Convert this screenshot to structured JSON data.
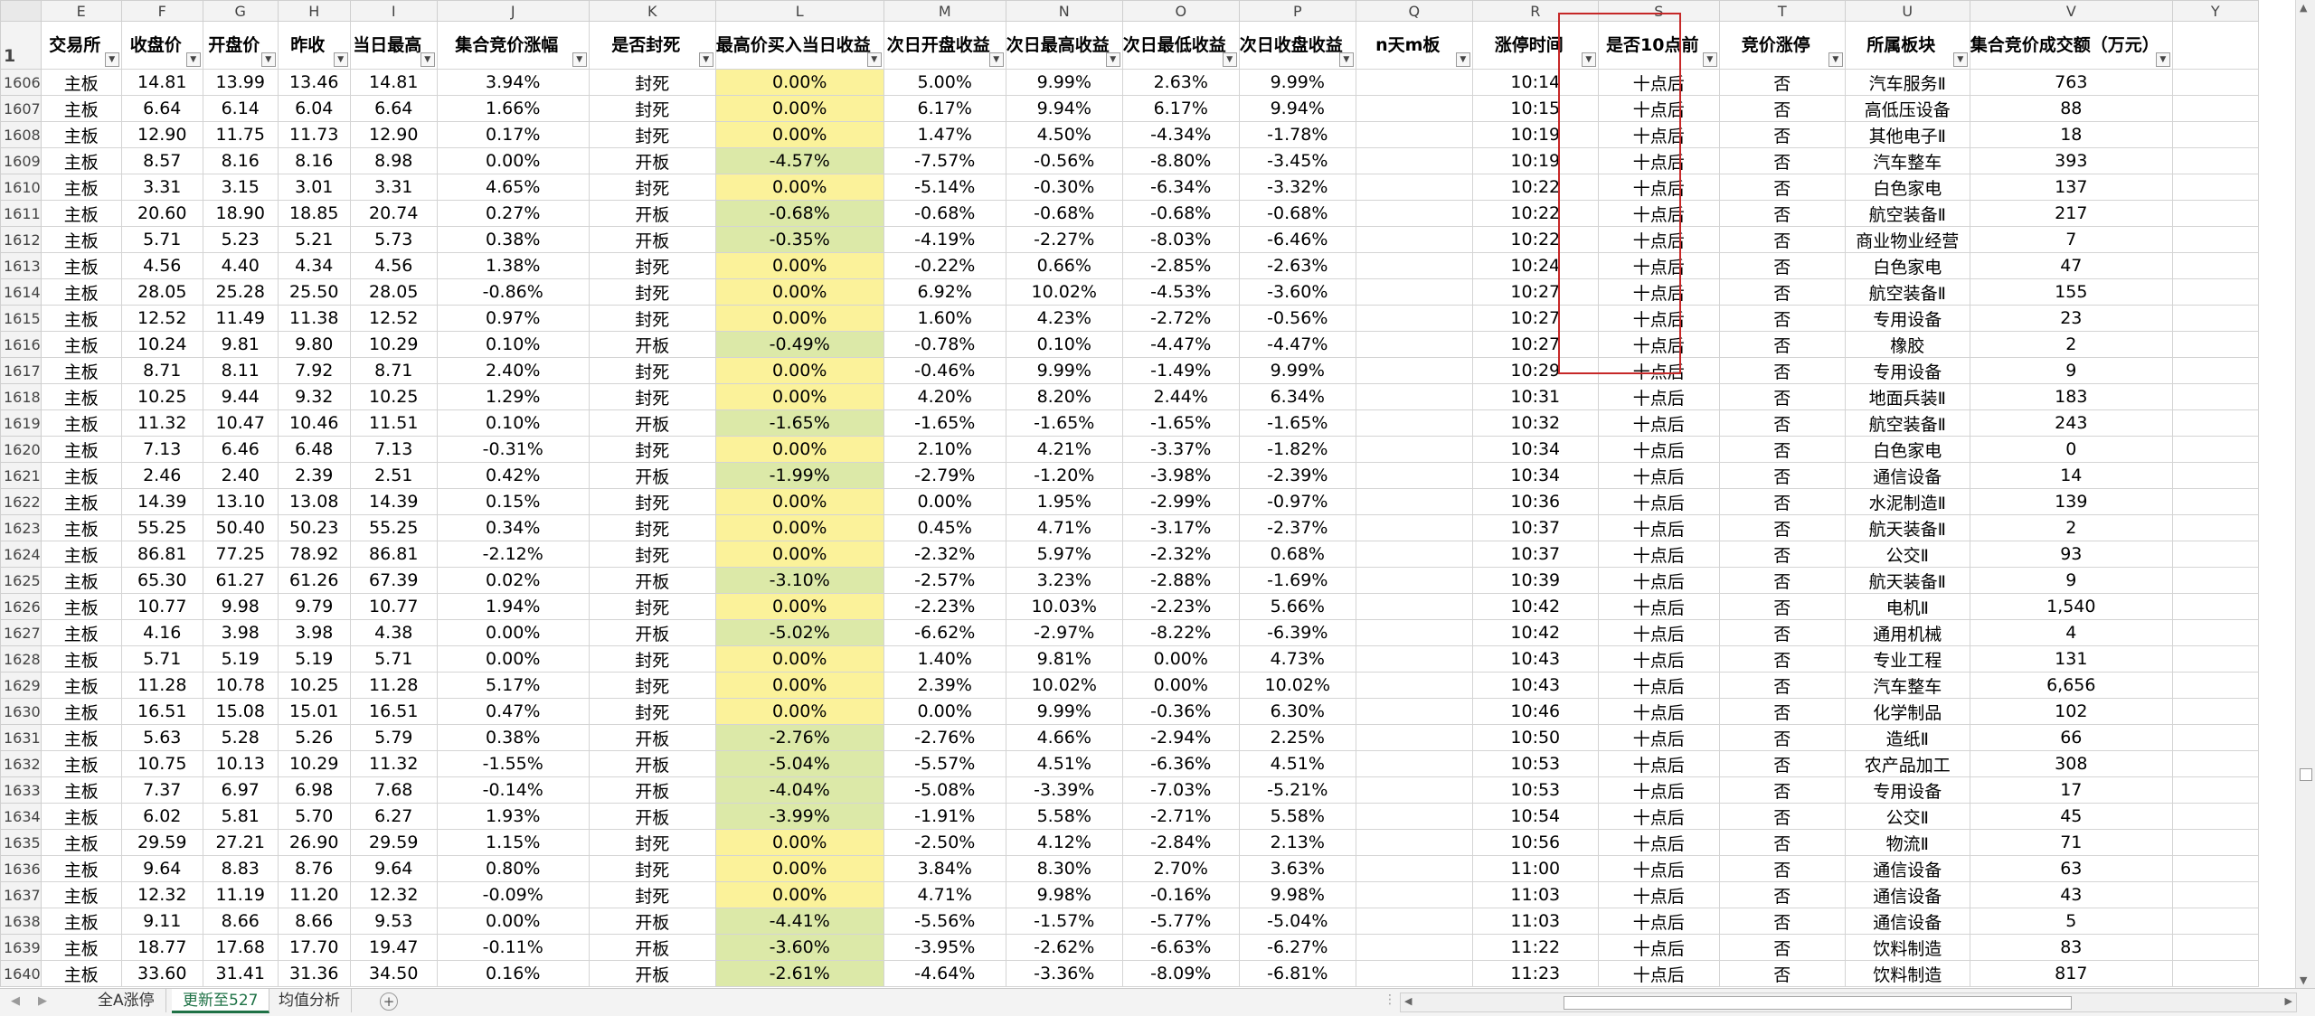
{
  "column_letters": [
    "E",
    "F",
    "G",
    "H",
    "I",
    "J",
    "K",
    "L",
    "M",
    "N",
    "O",
    "P",
    "Q",
    "R",
    "S",
    "T",
    "U",
    "V",
    "Y"
  ],
  "header_row_number": "1",
  "headers": [
    "交易所",
    "收盘价",
    "开盘价",
    "昨收",
    "当日最高",
    "集合竞价涨幅",
    "是否封死",
    "最高价买入当日收益",
    "次日开盘收益",
    "次日最高收益",
    "次日最低收益",
    "次日收盘收益",
    "n天m板",
    "涨停时间",
    "是否10点前",
    "竞价涨停",
    "所属板块",
    "集合竞价成交额（万元）",
    ""
  ],
  "rows": [
    [
      "1606",
      "主板",
      "14.81",
      "13.99",
      "13.46",
      "14.81",
      "3.94%",
      "封死",
      "0.00%",
      "5.00%",
      "9.99%",
      "2.63%",
      "9.99%",
      "",
      "10:14",
      "十点后",
      "否",
      "汽车服务Ⅱ",
      "763"
    ],
    [
      "1607",
      "主板",
      "6.64",
      "6.14",
      "6.04",
      "6.64",
      "1.66%",
      "封死",
      "0.00%",
      "6.17%",
      "9.94%",
      "6.17%",
      "9.94%",
      "",
      "10:15",
      "十点后",
      "否",
      "高低压设备",
      "88"
    ],
    [
      "1608",
      "主板",
      "12.90",
      "11.75",
      "11.73",
      "12.90",
      "0.17%",
      "封死",
      "0.00%",
      "1.47%",
      "4.50%",
      "-4.34%",
      "-1.78%",
      "",
      "10:19",
      "十点后",
      "否",
      "其他电子Ⅱ",
      "18"
    ],
    [
      "1609",
      "主板",
      "8.57",
      "8.16",
      "8.16",
      "8.98",
      "0.00%",
      "开板",
      "-4.57%",
      "-7.57%",
      "-0.56%",
      "-8.80%",
      "-3.45%",
      "",
      "10:19",
      "十点后",
      "否",
      "汽车整车",
      "393"
    ],
    [
      "1610",
      "主板",
      "3.31",
      "3.15",
      "3.01",
      "3.31",
      "4.65%",
      "封死",
      "0.00%",
      "-5.14%",
      "-0.30%",
      "-6.34%",
      "-3.32%",
      "",
      "10:22",
      "十点后",
      "否",
      "白色家电",
      "137"
    ],
    [
      "1611",
      "主板",
      "20.60",
      "18.90",
      "18.85",
      "20.74",
      "0.27%",
      "开板",
      "-0.68%",
      "-0.68%",
      "-0.68%",
      "-0.68%",
      "-0.68%",
      "",
      "10:22",
      "十点后",
      "否",
      "航空装备Ⅱ",
      "217"
    ],
    [
      "1612",
      "主板",
      "5.71",
      "5.23",
      "5.21",
      "5.73",
      "0.38%",
      "开板",
      "-0.35%",
      "-4.19%",
      "-2.27%",
      "-8.03%",
      "-6.46%",
      "",
      "10:22",
      "十点后",
      "否",
      "商业物业经营",
      "7"
    ],
    [
      "1613",
      "主板",
      "4.56",
      "4.40",
      "4.34",
      "4.56",
      "1.38%",
      "封死",
      "0.00%",
      "-0.22%",
      "0.66%",
      "-2.85%",
      "-2.63%",
      "",
      "10:24",
      "十点后",
      "否",
      "白色家电",
      "47"
    ],
    [
      "1614",
      "主板",
      "28.05",
      "25.28",
      "25.50",
      "28.05",
      "-0.86%",
      "封死",
      "0.00%",
      "6.92%",
      "10.02%",
      "-4.53%",
      "-3.60%",
      "",
      "10:27",
      "十点后",
      "否",
      "航空装备Ⅱ",
      "155"
    ],
    [
      "1615",
      "主板",
      "12.52",
      "11.49",
      "11.38",
      "12.52",
      "0.97%",
      "封死",
      "0.00%",
      "1.60%",
      "4.23%",
      "-2.72%",
      "-0.56%",
      "",
      "10:27",
      "十点后",
      "否",
      "专用设备",
      "23"
    ],
    [
      "1616",
      "主板",
      "10.24",
      "9.81",
      "9.80",
      "10.29",
      "0.10%",
      "开板",
      "-0.49%",
      "-0.78%",
      "0.10%",
      "-4.47%",
      "-4.47%",
      "",
      "10:27",
      "十点后",
      "否",
      "橡胶",
      "2"
    ],
    [
      "1617",
      "主板",
      "8.71",
      "8.11",
      "7.92",
      "8.71",
      "2.40%",
      "封死",
      "0.00%",
      "-0.46%",
      "9.99%",
      "-1.49%",
      "9.99%",
      "",
      "10:29",
      "十点后",
      "否",
      "专用设备",
      "9"
    ],
    [
      "1618",
      "主板",
      "10.25",
      "9.44",
      "9.32",
      "10.25",
      "1.29%",
      "封死",
      "0.00%",
      "4.20%",
      "8.20%",
      "2.44%",
      "6.34%",
      "",
      "10:31",
      "十点后",
      "否",
      "地面兵装Ⅱ",
      "183"
    ],
    [
      "1619",
      "主板",
      "11.32",
      "10.47",
      "10.46",
      "11.51",
      "0.10%",
      "开板",
      "-1.65%",
      "-1.65%",
      "-1.65%",
      "-1.65%",
      "-1.65%",
      "",
      "10:32",
      "十点后",
      "否",
      "航空装备Ⅱ",
      "243"
    ],
    [
      "1620",
      "主板",
      "7.13",
      "6.46",
      "6.48",
      "7.13",
      "-0.31%",
      "封死",
      "0.00%",
      "2.10%",
      "4.21%",
      "-3.37%",
      "-1.82%",
      "",
      "10:34",
      "十点后",
      "否",
      "白色家电",
      "0"
    ],
    [
      "1621",
      "主板",
      "2.46",
      "2.40",
      "2.39",
      "2.51",
      "0.42%",
      "开板",
      "-1.99%",
      "-2.79%",
      "-1.20%",
      "-3.98%",
      "-2.39%",
      "",
      "10:34",
      "十点后",
      "否",
      "通信设备",
      "14"
    ],
    [
      "1622",
      "主板",
      "14.39",
      "13.10",
      "13.08",
      "14.39",
      "0.15%",
      "封死",
      "0.00%",
      "0.00%",
      "1.95%",
      "-2.99%",
      "-0.97%",
      "",
      "10:36",
      "十点后",
      "否",
      "水泥制造Ⅱ",
      "139"
    ],
    [
      "1623",
      "主板",
      "55.25",
      "50.40",
      "50.23",
      "55.25",
      "0.34%",
      "封死",
      "0.00%",
      "0.45%",
      "4.71%",
      "-3.17%",
      "-2.37%",
      "",
      "10:37",
      "十点后",
      "否",
      "航天装备Ⅱ",
      "2"
    ],
    [
      "1624",
      "主板",
      "86.81",
      "77.25",
      "78.92",
      "86.81",
      "-2.12%",
      "封死",
      "0.00%",
      "-2.32%",
      "5.97%",
      "-2.32%",
      "0.68%",
      "",
      "10:37",
      "十点后",
      "否",
      "公交Ⅱ",
      "93"
    ],
    [
      "1625",
      "主板",
      "65.30",
      "61.27",
      "61.26",
      "67.39",
      "0.02%",
      "开板",
      "-3.10%",
      "-2.57%",
      "3.23%",
      "-2.88%",
      "-1.69%",
      "",
      "10:39",
      "十点后",
      "否",
      "航天装备Ⅱ",
      "9"
    ],
    [
      "1626",
      "主板",
      "10.77",
      "9.98",
      "9.79",
      "10.77",
      "1.94%",
      "封死",
      "0.00%",
      "-2.23%",
      "10.03%",
      "-2.23%",
      "5.66%",
      "",
      "10:42",
      "十点后",
      "否",
      "电机Ⅱ",
      "1,540"
    ],
    [
      "1627",
      "主板",
      "4.16",
      "3.98",
      "3.98",
      "4.38",
      "0.00%",
      "开板",
      "-5.02%",
      "-6.62%",
      "-2.97%",
      "-8.22%",
      "-6.39%",
      "",
      "10:42",
      "十点后",
      "否",
      "通用机械",
      "4"
    ],
    [
      "1628",
      "主板",
      "5.71",
      "5.19",
      "5.19",
      "5.71",
      "0.00%",
      "封死",
      "0.00%",
      "1.40%",
      "9.81%",
      "0.00%",
      "4.73%",
      "",
      "10:43",
      "十点后",
      "否",
      "专业工程",
      "131"
    ],
    [
      "1629",
      "主板",
      "11.28",
      "10.78",
      "10.25",
      "11.28",
      "5.17%",
      "封死",
      "0.00%",
      "2.39%",
      "10.02%",
      "0.00%",
      "10.02%",
      "",
      "10:43",
      "十点后",
      "否",
      "汽车整车",
      "6,656"
    ],
    [
      "1630",
      "主板",
      "16.51",
      "15.08",
      "15.01",
      "16.51",
      "0.47%",
      "封死",
      "0.00%",
      "0.00%",
      "9.99%",
      "-0.36%",
      "6.30%",
      "",
      "10:46",
      "十点后",
      "否",
      "化学制品",
      "102"
    ],
    [
      "1631",
      "主板",
      "5.63",
      "5.28",
      "5.26",
      "5.79",
      "0.38%",
      "开板",
      "-2.76%",
      "-2.76%",
      "4.66%",
      "-2.94%",
      "2.25%",
      "",
      "10:50",
      "十点后",
      "否",
      "造纸Ⅱ",
      "66"
    ],
    [
      "1632",
      "主板",
      "10.75",
      "10.13",
      "10.29",
      "11.32",
      "-1.55%",
      "开板",
      "-5.04%",
      "-5.57%",
      "4.51%",
      "-6.36%",
      "4.51%",
      "",
      "10:53",
      "十点后",
      "否",
      "农产品加工",
      "308"
    ],
    [
      "1633",
      "主板",
      "7.37",
      "6.97",
      "6.98",
      "7.68",
      "-0.14%",
      "开板",
      "-4.04%",
      "-5.08%",
      "-3.39%",
      "-7.03%",
      "-5.21%",
      "",
      "10:53",
      "十点后",
      "否",
      "专用设备",
      "17"
    ],
    [
      "1634",
      "主板",
      "6.02",
      "5.81",
      "5.70",
      "6.27",
      "1.93%",
      "开板",
      "-3.99%",
      "-1.91%",
      "5.58%",
      "-2.71%",
      "5.58%",
      "",
      "10:54",
      "十点后",
      "否",
      "公交Ⅱ",
      "45"
    ],
    [
      "1635",
      "主板",
      "29.59",
      "27.21",
      "26.90",
      "29.59",
      "1.15%",
      "封死",
      "0.00%",
      "-2.50%",
      "4.12%",
      "-2.84%",
      "2.13%",
      "",
      "10:56",
      "十点后",
      "否",
      "物流Ⅱ",
      "71"
    ],
    [
      "1636",
      "主板",
      "9.64",
      "8.83",
      "8.76",
      "9.64",
      "0.80%",
      "封死",
      "0.00%",
      "3.84%",
      "8.30%",
      "2.70%",
      "3.63%",
      "",
      "11:00",
      "十点后",
      "否",
      "通信设备",
      "63"
    ],
    [
      "1637",
      "主板",
      "12.32",
      "11.19",
      "11.20",
      "12.32",
      "-0.09%",
      "封死",
      "0.00%",
      "4.71%",
      "9.98%",
      "-0.16%",
      "9.98%",
      "",
      "11:03",
      "十点后",
      "否",
      "通信设备",
      "43"
    ],
    [
      "1638",
      "主板",
      "9.11",
      "8.66",
      "8.66",
      "9.53",
      "0.00%",
      "开板",
      "-4.41%",
      "-5.56%",
      "-1.57%",
      "-5.77%",
      "-5.04%",
      "",
      "11:03",
      "十点后",
      "否",
      "通信设备",
      "5"
    ],
    [
      "1639",
      "主板",
      "18.77",
      "17.68",
      "17.70",
      "19.47",
      "-0.11%",
      "开板",
      "-3.60%",
      "-3.95%",
      "-2.62%",
      "-6.63%",
      "-6.27%",
      "",
      "11:22",
      "十点后",
      "否",
      "饮料制造",
      "83"
    ],
    [
      "1640",
      "主板",
      "33.60",
      "31.41",
      "31.36",
      "34.50",
      "0.16%",
      "开板",
      "-2.61%",
      "-4.64%",
      "-3.36%",
      "-8.09%",
      "-6.81%",
      "",
      "11:23",
      "十点后",
      "否",
      "饮料制造",
      "817"
    ]
  ],
  "sheet_tabs": [
    {
      "label": "全A涨停",
      "active": false
    },
    {
      "label": "更新至527",
      "active": true
    },
    {
      "label": "均值分析",
      "active": false
    }
  ],
  "add_sheet_label": "+",
  "tab_overflow": "⋮",
  "colors": {
    "highlight_yellow": "#fbf29a",
    "highlight_green": "#dce9a8",
    "active_tab": "#1e7145",
    "selection_box": "#c62828"
  },
  "icons": {
    "filter": "filter-dropdown-icon",
    "scroll_left": "arrow-left-icon",
    "scroll_right": "arrow-right-icon",
    "scroll_up": "arrow-up-icon",
    "scroll_down": "arrow-down-icon"
  }
}
